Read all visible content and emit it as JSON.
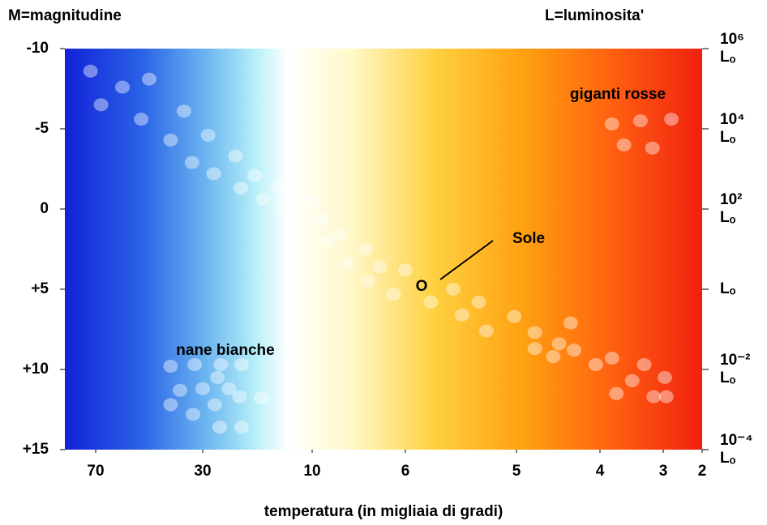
{
  "chart_data": {
    "type": "scatter",
    "y_title": "M=magnitudine",
    "y2_title": "L=luminosita'",
    "x_title": "temperatura (in migliaia di gradi)",
    "xlim": [
      82,
      2
    ],
    "xticks": [
      70,
      30,
      10,
      6,
      5,
      4,
      3,
      2
    ],
    "ylim": [
      -10,
      15
    ],
    "yticks": [
      -10,
      -5,
      0,
      {
        "value": 5,
        "label": "+5"
      },
      {
        "value": 10,
        "label": "+10"
      },
      {
        "value": 15,
        "label": "+15"
      }
    ],
    "y2lim": [
      1000000,
      0.0001
    ],
    "y2scale": "log",
    "y2ticks": [
      {
        "value": 1000000,
        "label": "10⁶\nLₒ"
      },
      {
        "value": 10000,
        "label": "10⁴\nLₒ"
      },
      {
        "value": 100,
        "label": "10²\nLₒ"
      },
      {
        "value": 1,
        "label": "Lₒ"
      },
      {
        "value": 0.01,
        "label": "10⁻²\nLₒ"
      },
      {
        "value": 0.0001,
        "label": "10⁻⁴\nLₒ"
      }
    ],
    "annotations": [
      "giganti rosse",
      "nane bianche",
      "Sole",
      "O"
    ],
    "series": [
      {
        "x": [
          72,
          68,
          60,
          50,
          53,
          37,
          42,
          29,
          34,
          28,
          24,
          20.5,
          23,
          16,
          19,
          15,
          10.1,
          9.6,
          8.8,
          9.3,
          7.7,
          8.5,
          7.1,
          7.6,
          6,
          6.5,
          5.77,
          5.57,
          5.49,
          5.34,
          5.27,
          5.02,
          4.78,
          4.35,
          4.78,
          4.49,
          4.56,
          4.31,
          4.05,
          3.81,
          3.3,
          3.49,
          3.74,
          2.96,
          3.15,
          2.92,
          3.81,
          3.36,
          2.79,
          3.62,
          3.17,
          42,
          33,
          26.7,
          22.9,
          38.5,
          30,
          25.2,
          27.3,
          42,
          33.6,
          27.8,
          23.3,
          19.3,
          26.9,
          22.9
        ],
        "y": [
          -8.6,
          -6.5,
          -7.6,
          -8.1,
          -5.6,
          -6.1,
          -4.3,
          -4.6,
          -2.9,
          -2.2,
          -3.3,
          -2.1,
          -1.3,
          -1.4,
          -0.6,
          0,
          -0.4,
          0.6,
          1.6,
          2,
          2.5,
          3.4,
          3.6,
          4.5,
          3.8,
          5.3,
          5.8,
          5,
          6.6,
          5.8,
          7.6,
          6.7,
          7.7,
          7.1,
          8.7,
          8.4,
          9.2,
          8.8,
          9.7,
          9.3,
          9.7,
          10.7,
          11.5,
          10.5,
          11.7,
          11.7,
          -5.3,
          -5.5,
          -5.6,
          -4,
          -3.8,
          9.8,
          9.7,
          9.7,
          9.7,
          11.3,
          11.2,
          11.2,
          10.5,
          12.2,
          12.8,
          12.2,
          11.7,
          11.8,
          13.6,
          13.6
        ]
      }
    ]
  }
}
